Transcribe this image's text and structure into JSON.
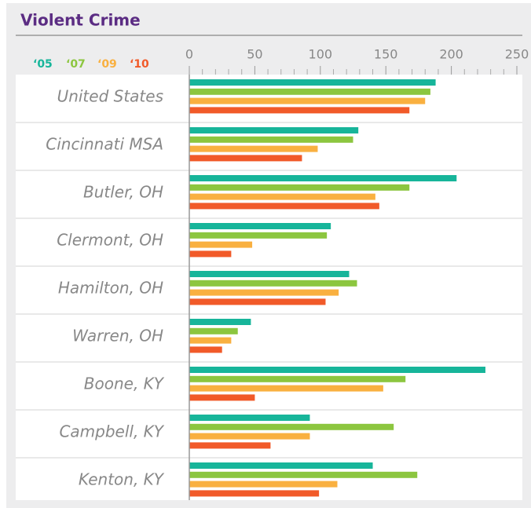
{
  "chart_data": {
    "type": "hbar",
    "title": "Violent Crime",
    "categories": [
      "United States",
      "Cincinnati MSA",
      "Butler, OH",
      "Clermont, OH",
      "Hamilton, OH",
      "Warren, OH",
      "Boone, KY",
      "Campbell, KY",
      "Kenton, KY"
    ],
    "series": [
      {
        "name": "‘05",
        "color": "#17b59a",
        "values": [
          188,
          129,
          204,
          108,
          122,
          47,
          226,
          92,
          140
        ]
      },
      {
        "name": "‘07",
        "color": "#8cc63f",
        "values": [
          184,
          125,
          168,
          105,
          128,
          37,
          165,
          156,
          174
        ]
      },
      {
        "name": "‘09",
        "color": "#f9b040",
        "values": [
          180,
          98,
          142,
          48,
          114,
          32,
          148,
          92,
          113
        ]
      },
      {
        "name": "‘10",
        "color": "#f15a29",
        "values": [
          168,
          86,
          145,
          32,
          104,
          25,
          50,
          62,
          99
        ]
      }
    ],
    "xlim": [
      0,
      250
    ],
    "xticks": [
      0,
      50,
      100,
      150,
      200,
      250
    ],
    "minor_xticks": [
      10,
      20,
      30,
      40,
      60,
      70,
      80,
      90,
      110,
      120,
      130,
      140,
      160,
      170,
      180,
      190,
      210,
      220,
      230,
      240
    ]
  }
}
